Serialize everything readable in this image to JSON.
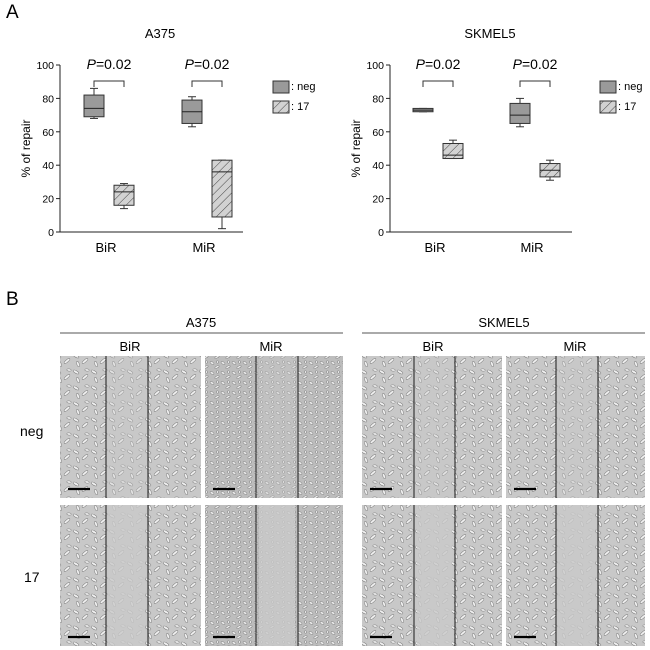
{
  "panels": {
    "a": "A",
    "b": "B"
  },
  "chart_data": [
    {
      "type": "box",
      "title": "A375",
      "ylabel": "% of repair",
      "ylim": [
        0,
        100
      ],
      "yticks": [
        0,
        20,
        40,
        60,
        80,
        100
      ],
      "categories": [
        "BiR",
        "MiR"
      ],
      "series": [
        {
          "name": ": neg",
          "pattern": "solid",
          "color": "#9a9a9a",
          "boxes": [
            {
              "min": 68,
              "q1": 69,
              "median": 74,
              "q3": 82,
              "max": 86
            },
            {
              "min": 63,
              "q1": 65,
              "median": 72,
              "q3": 79,
              "max": 81
            }
          ]
        },
        {
          "name": ": 17",
          "pattern": "hatch",
          "color": "#cccccc",
          "boxes": [
            {
              "min": 14,
              "q1": 16,
              "median": 24,
              "q3": 28,
              "max": 29
            },
            {
              "min": 2,
              "q1": 9,
              "median": 36,
              "q3": 43,
              "max": 43
            }
          ]
        }
      ],
      "annotations": [
        {
          "category": "BiR",
          "text_prefix": "P",
          "text_suffix": "=0.02"
        },
        {
          "category": "MiR",
          "text_prefix": "P",
          "text_suffix": "=0.02"
        }
      ]
    },
    {
      "type": "box",
      "title": "SKMEL5",
      "ylabel": "% of repair",
      "ylim": [
        0,
        100
      ],
      "yticks": [
        0,
        20,
        40,
        60,
        80,
        100
      ],
      "categories": [
        "BiR",
        "MiR"
      ],
      "series": [
        {
          "name": ": neg",
          "pattern": "solid",
          "color": "#9a9a9a",
          "boxes": [
            {
              "min": 72,
              "q1": 72,
              "median": 73,
              "q3": 74,
              "max": 74
            },
            {
              "min": 63,
              "q1": 65,
              "median": 70,
              "q3": 77,
              "max": 80
            }
          ]
        },
        {
          "name": ": 17",
          "pattern": "hatch",
          "color": "#cccccc",
          "boxes": [
            {
              "min": 44,
              "q1": 44,
              "median": 46,
              "q3": 53,
              "max": 55
            },
            {
              "min": 31,
              "q1": 33,
              "median": 37,
              "q3": 41,
              "max": 43
            }
          ]
        }
      ],
      "annotations": [
        {
          "category": "BiR",
          "text_prefix": "P",
          "text_suffix": "=0.02"
        },
        {
          "category": "MiR",
          "text_prefix": "P",
          "text_suffix": "=0.02"
        }
      ]
    }
  ],
  "micrographs": {
    "groups": [
      "A375",
      "SKMEL5"
    ],
    "subgroups": [
      "BiR",
      "MiR",
      "BiR",
      "MiR"
    ],
    "rows": [
      "neg",
      "17"
    ]
  }
}
